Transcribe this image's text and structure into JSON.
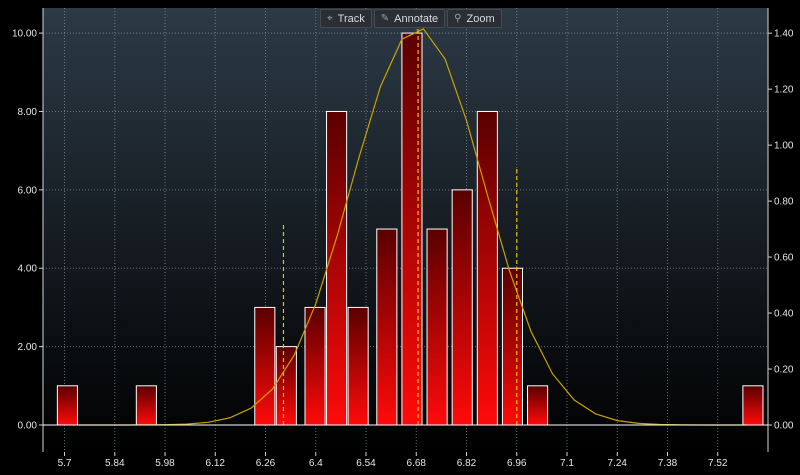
{
  "toolbar": {
    "track": {
      "label": "Track",
      "icon": "crosshair-icon"
    },
    "annotate": {
      "label": "Annotate",
      "icon": "pencil-icon"
    },
    "zoom": {
      "label": "Zoom",
      "icon": "magnifier-icon"
    }
  },
  "colors": {
    "background_top": "#2c3a46",
    "background_bottom": "#000000",
    "bar_top": "#5a0000",
    "bar_bottom": "#ff0a0a",
    "bar_outline": "#ffffff",
    "curve": "#c8a000",
    "marker_lines": "#e8c000",
    "grid": "#8a96a2",
    "text": "#e6e6e6"
  },
  "chart_data": {
    "type": "bar",
    "subtype": "histogram-with-normal-curve",
    "title": "",
    "xlabel": "",
    "ylabel": "",
    "x_ticks": [
      "5.7",
      "5.84",
      "5.98",
      "6.12",
      "6.26",
      "6.4",
      "6.54",
      "6.68",
      "6.82",
      "6.96",
      "7.1",
      "7.24",
      "7.38",
      "7.52"
    ],
    "x_tick_values": [
      5.7,
      5.84,
      5.98,
      6.12,
      6.26,
      6.4,
      6.54,
      6.68,
      6.82,
      6.96,
      7.1,
      7.24,
      7.38,
      7.52
    ],
    "xlim": [
      5.64,
      7.66
    ],
    "left_axis": {
      "ticks": [
        "0.00",
        "2.00",
        "4.00",
        "6.00",
        "8.00",
        "10.00"
      ],
      "ylim": [
        0,
        10.64
      ]
    },
    "right_axis": {
      "ticks": [
        "0.00",
        "0.20",
        "0.40",
        "0.60",
        "0.80",
        "1.00",
        "1.20",
        "1.40"
      ],
      "ylim": [
        0,
        1.49
      ]
    },
    "bin_width": 0.056,
    "bins": [
      {
        "start": 5.68,
        "count": 1
      },
      {
        "start": 5.9,
        "count": 1
      },
      {
        "start": 6.23,
        "count": 3
      },
      {
        "start": 6.29,
        "count": 2
      },
      {
        "start": 6.37,
        "count": 3
      },
      {
        "start": 6.43,
        "count": 8
      },
      {
        "start": 6.49,
        "count": 3
      },
      {
        "start": 6.57,
        "count": 5
      },
      {
        "start": 6.64,
        "count": 10
      },
      {
        "start": 6.71,
        "count": 5
      },
      {
        "start": 6.78,
        "count": 6
      },
      {
        "start": 6.85,
        "count": 8
      },
      {
        "start": 6.92,
        "count": 4
      },
      {
        "start": 6.99,
        "count": 1
      },
      {
        "start": 7.59,
        "count": 1
      }
    ],
    "normal_curve": {
      "mean": 6.685,
      "sd": 0.185,
      "peak": 1.42
    },
    "marker_lines": [
      {
        "x": 6.31,
        "y": 0.72
      },
      {
        "x": 6.685,
        "y": 1.42
      },
      {
        "x": 6.96,
        "y": 0.92
      }
    ],
    "grid": true
  }
}
